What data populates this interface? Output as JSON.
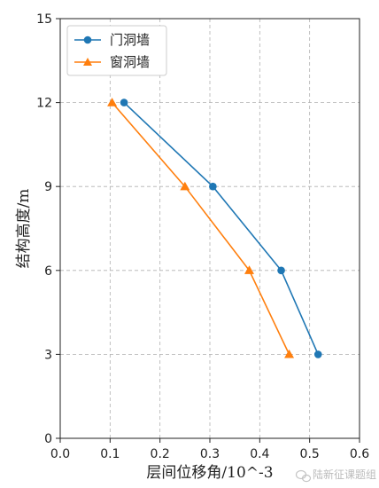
{
  "chart_data": {
    "type": "line",
    "title": "",
    "xlabel": "层间位移角/10^-3",
    "ylabel": "结构高度/m",
    "xlim": [
      0.0,
      0.6
    ],
    "ylim": [
      0,
      15
    ],
    "xticks": [
      "0.0",
      "0.1",
      "0.2",
      "0.3",
      "0.4",
      "0.5",
      "0.6"
    ],
    "yticks": [
      "0",
      "3",
      "6",
      "9",
      "12",
      "15"
    ],
    "grid": "dashed",
    "legend_position": "top-left",
    "series": [
      {
        "name": "门洞墙",
        "color": "#1f77b4",
        "marker": "circle",
        "points": [
          {
            "x": 0.128,
            "y": 12
          },
          {
            "x": 0.306,
            "y": 9
          },
          {
            "x": 0.443,
            "y": 6
          },
          {
            "x": 0.517,
            "y": 3
          }
        ]
      },
      {
        "name": "窗洞墙",
        "color": "#ff7f0e",
        "marker": "triangle",
        "points": [
          {
            "x": 0.104,
            "y": 12
          },
          {
            "x": 0.25,
            "y": 9
          },
          {
            "x": 0.379,
            "y": 6
          },
          {
            "x": 0.459,
            "y": 3
          }
        ]
      }
    ]
  },
  "watermark": {
    "text": "陆新征课题组",
    "icon": "wechat-logo-icon"
  }
}
